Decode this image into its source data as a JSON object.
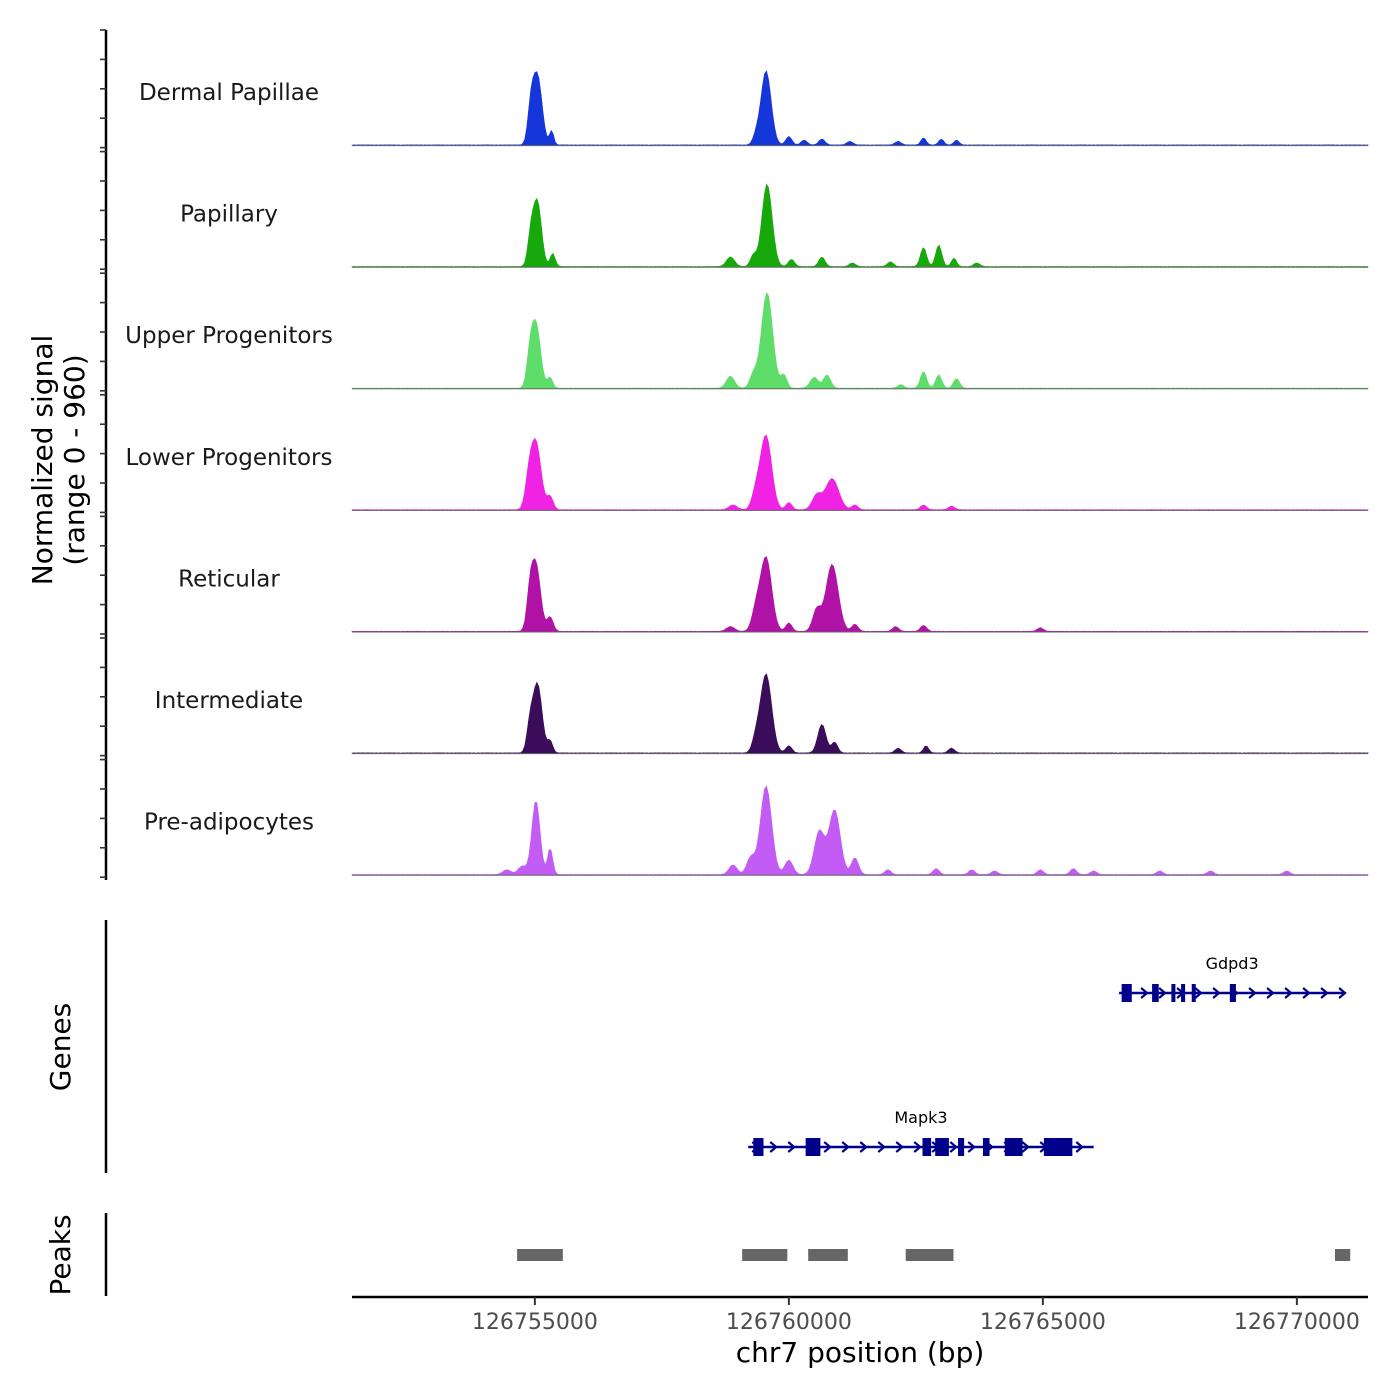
{
  "chart_data": {
    "type": "area",
    "chromosome": "chr7",
    "xlabel": "chr7 position (bp)",
    "xlim": [
      126751400,
      126771400
    ],
    "x_ticks": [
      126755000,
      126760000,
      126765000,
      126770000
    ],
    "x_tick_labels": [
      "126755000",
      "126760000",
      "126765000",
      "126770000"
    ],
    "signal_axis": {
      "title_line1": "Normalized signal",
      "title_line2": "(range 0 - 960)",
      "ylim": [
        0,
        960
      ]
    },
    "series": [
      {
        "name": "Dermal Papillae",
        "color": "#1536d8",
        "peaks": [
          {
            "pos": 126755050,
            "height": 580,
            "width": 90
          },
          {
            "pos": 126754920,
            "height": 260,
            "width": 60
          },
          {
            "pos": 126755330,
            "height": 120,
            "width": 40
          },
          {
            "pos": 126759550,
            "height": 620,
            "width": 100
          },
          {
            "pos": 126759350,
            "height": 60,
            "width": 60
          },
          {
            "pos": 126760000,
            "height": 70,
            "width": 60
          },
          {
            "pos": 126760650,
            "height": 50,
            "width": 60
          },
          {
            "pos": 126760300,
            "height": 40,
            "width": 60
          },
          {
            "pos": 126761200,
            "height": 30,
            "width": 60
          },
          {
            "pos": 126762150,
            "height": 30,
            "width": 60
          },
          {
            "pos": 126762650,
            "height": 60,
            "width": 50
          },
          {
            "pos": 126763000,
            "height": 50,
            "width": 50
          },
          {
            "pos": 126763300,
            "height": 40,
            "width": 50
          }
        ]
      },
      {
        "name": "Papillary",
        "color": "#17a80c",
        "peaks": [
          {
            "pos": 126755050,
            "height": 540,
            "width": 80
          },
          {
            "pos": 126754920,
            "height": 240,
            "width": 60
          },
          {
            "pos": 126755350,
            "height": 110,
            "width": 50
          },
          {
            "pos": 126759570,
            "height": 690,
            "width": 100
          },
          {
            "pos": 126758850,
            "height": 80,
            "width": 80
          },
          {
            "pos": 126759300,
            "height": 90,
            "width": 60
          },
          {
            "pos": 126760050,
            "height": 60,
            "width": 60
          },
          {
            "pos": 126760650,
            "height": 80,
            "width": 60
          },
          {
            "pos": 126761250,
            "height": 30,
            "width": 60
          },
          {
            "pos": 126762000,
            "height": 40,
            "width": 60
          },
          {
            "pos": 126762650,
            "height": 160,
            "width": 60
          },
          {
            "pos": 126762950,
            "height": 180,
            "width": 60
          },
          {
            "pos": 126763250,
            "height": 70,
            "width": 50
          },
          {
            "pos": 126763700,
            "height": 30,
            "width": 60
          }
        ]
      },
      {
        "name": "Upper Progenitors",
        "color": "#5fdd6b",
        "peaks": [
          {
            "pos": 126755020,
            "height": 540,
            "width": 90
          },
          {
            "pos": 126754900,
            "height": 200,
            "width": 60
          },
          {
            "pos": 126755300,
            "height": 90,
            "width": 50
          },
          {
            "pos": 126759570,
            "height": 800,
            "width": 110
          },
          {
            "pos": 126758850,
            "height": 100,
            "width": 80
          },
          {
            "pos": 126759300,
            "height": 110,
            "width": 70
          },
          {
            "pos": 126759900,
            "height": 110,
            "width": 60
          },
          {
            "pos": 126760500,
            "height": 90,
            "width": 80
          },
          {
            "pos": 126760750,
            "height": 110,
            "width": 70
          },
          {
            "pos": 126762650,
            "height": 140,
            "width": 60
          },
          {
            "pos": 126762950,
            "height": 110,
            "width": 60
          },
          {
            "pos": 126763300,
            "height": 80,
            "width": 60
          },
          {
            "pos": 126762200,
            "height": 30,
            "width": 60
          }
        ]
      },
      {
        "name": "Lower Progenitors",
        "color": "#f022e4",
        "peaks": [
          {
            "pos": 126755020,
            "height": 560,
            "width": 100
          },
          {
            "pos": 126754880,
            "height": 200,
            "width": 70
          },
          {
            "pos": 126755300,
            "height": 110,
            "width": 60
          },
          {
            "pos": 126759550,
            "height": 620,
            "width": 110
          },
          {
            "pos": 126759350,
            "height": 130,
            "width": 80
          },
          {
            "pos": 126758900,
            "height": 40,
            "width": 80
          },
          {
            "pos": 126760000,
            "height": 60,
            "width": 60
          },
          {
            "pos": 126760550,
            "height": 120,
            "width": 90
          },
          {
            "pos": 126760850,
            "height": 260,
            "width": 130
          },
          {
            "pos": 126761300,
            "height": 40,
            "width": 60
          },
          {
            "pos": 126762650,
            "height": 40,
            "width": 60
          },
          {
            "pos": 126763200,
            "height": 30,
            "width": 60
          }
        ]
      },
      {
        "name": "Reticular",
        "color": "#b012a6",
        "peaks": [
          {
            "pos": 126755020,
            "height": 560,
            "width": 90
          },
          {
            "pos": 126754900,
            "height": 240,
            "width": 60
          },
          {
            "pos": 126755300,
            "height": 120,
            "width": 60
          },
          {
            "pos": 126759550,
            "height": 620,
            "width": 110
          },
          {
            "pos": 126759350,
            "height": 160,
            "width": 80
          },
          {
            "pos": 126758850,
            "height": 40,
            "width": 80
          },
          {
            "pos": 126760000,
            "height": 70,
            "width": 60
          },
          {
            "pos": 126760550,
            "height": 180,
            "width": 80
          },
          {
            "pos": 126760850,
            "height": 560,
            "width": 120
          },
          {
            "pos": 126761300,
            "height": 60,
            "width": 60
          },
          {
            "pos": 126762100,
            "height": 40,
            "width": 60
          },
          {
            "pos": 126762650,
            "height": 50,
            "width": 60
          },
          {
            "pos": 126764950,
            "height": 30,
            "width": 60
          }
        ]
      },
      {
        "name": "Intermediate",
        "color": "#3a0c5a",
        "peaks": [
          {
            "pos": 126755050,
            "height": 580,
            "width": 90
          },
          {
            "pos": 126754900,
            "height": 200,
            "width": 60
          },
          {
            "pos": 126755300,
            "height": 100,
            "width": 50
          },
          {
            "pos": 126759550,
            "height": 660,
            "width": 110
          },
          {
            "pos": 126759350,
            "height": 100,
            "width": 70
          },
          {
            "pos": 126760000,
            "height": 60,
            "width": 60
          },
          {
            "pos": 126760650,
            "height": 240,
            "width": 80
          },
          {
            "pos": 126760900,
            "height": 90,
            "width": 60
          },
          {
            "pos": 126762150,
            "height": 40,
            "width": 60
          },
          {
            "pos": 126762700,
            "height": 60,
            "width": 50
          },
          {
            "pos": 126763200,
            "height": 40,
            "width": 60
          }
        ]
      },
      {
        "name": "Pre-adipocytes",
        "color": "#c25cf5",
        "peaks": [
          {
            "pos": 126755020,
            "height": 620,
            "width": 80
          },
          {
            "pos": 126754750,
            "height": 70,
            "width": 80
          },
          {
            "pos": 126754450,
            "height": 40,
            "width": 80
          },
          {
            "pos": 126755300,
            "height": 220,
            "width": 50
          },
          {
            "pos": 126759550,
            "height": 740,
            "width": 110
          },
          {
            "pos": 126759250,
            "height": 140,
            "width": 80
          },
          {
            "pos": 126758900,
            "height": 80,
            "width": 80
          },
          {
            "pos": 126760000,
            "height": 120,
            "width": 80
          },
          {
            "pos": 126760600,
            "height": 360,
            "width": 100
          },
          {
            "pos": 126760900,
            "height": 540,
            "width": 110
          },
          {
            "pos": 126761300,
            "height": 140,
            "width": 70
          },
          {
            "pos": 126761950,
            "height": 40,
            "width": 60
          },
          {
            "pos": 126762900,
            "height": 50,
            "width": 60
          },
          {
            "pos": 126763600,
            "height": 40,
            "width": 60
          },
          {
            "pos": 126764050,
            "height": 30,
            "width": 60
          },
          {
            "pos": 126764950,
            "height": 40,
            "width": 60
          },
          {
            "pos": 126765600,
            "height": 50,
            "width": 60
          },
          {
            "pos": 126766000,
            "height": 30,
            "width": 60
          },
          {
            "pos": 126767300,
            "height": 30,
            "width": 60
          },
          {
            "pos": 126768300,
            "height": 30,
            "width": 60
          },
          {
            "pos": 126769800,
            "height": 30,
            "width": 60
          }
        ]
      }
    ],
    "genes_track": {
      "title": "Genes",
      "color": "#00008b",
      "genes": [
        {
          "name": "Gdpd3",
          "start": 126766500,
          "end": 126770950,
          "strand": "+",
          "row": 0,
          "exons": [
            [
              126766550,
              126766750
            ],
            [
              126767150,
              126767280
            ],
            [
              126767530,
              126767600
            ],
            [
              126767720,
              126767800
            ],
            [
              126767930,
              126768000
            ],
            [
              126768680,
              126768800
            ]
          ]
        },
        {
          "name": "Mapk3",
          "start": 126759200,
          "end": 126766000,
          "strand": "+",
          "row": 1,
          "exons": [
            [
              126759300,
              126759500
            ],
            [
              126760330,
              126760620
            ],
            [
              126762630,
              126762800
            ],
            [
              126762880,
              126763150
            ],
            [
              126763330,
              126763450
            ],
            [
              126763820,
              126763950
            ],
            [
              126764250,
              126764600
            ],
            [
              126765020,
              126765580
            ]
          ]
        }
      ]
    },
    "peaks_track": {
      "title": "Peaks",
      "color": "#666666",
      "regions": [
        [
          126754650,
          126755550
        ],
        [
          126759080,
          126759970
        ],
        [
          126760380,
          126761160
        ],
        [
          126762300,
          126763240
        ],
        [
          126770750,
          126771050
        ]
      ]
    }
  }
}
